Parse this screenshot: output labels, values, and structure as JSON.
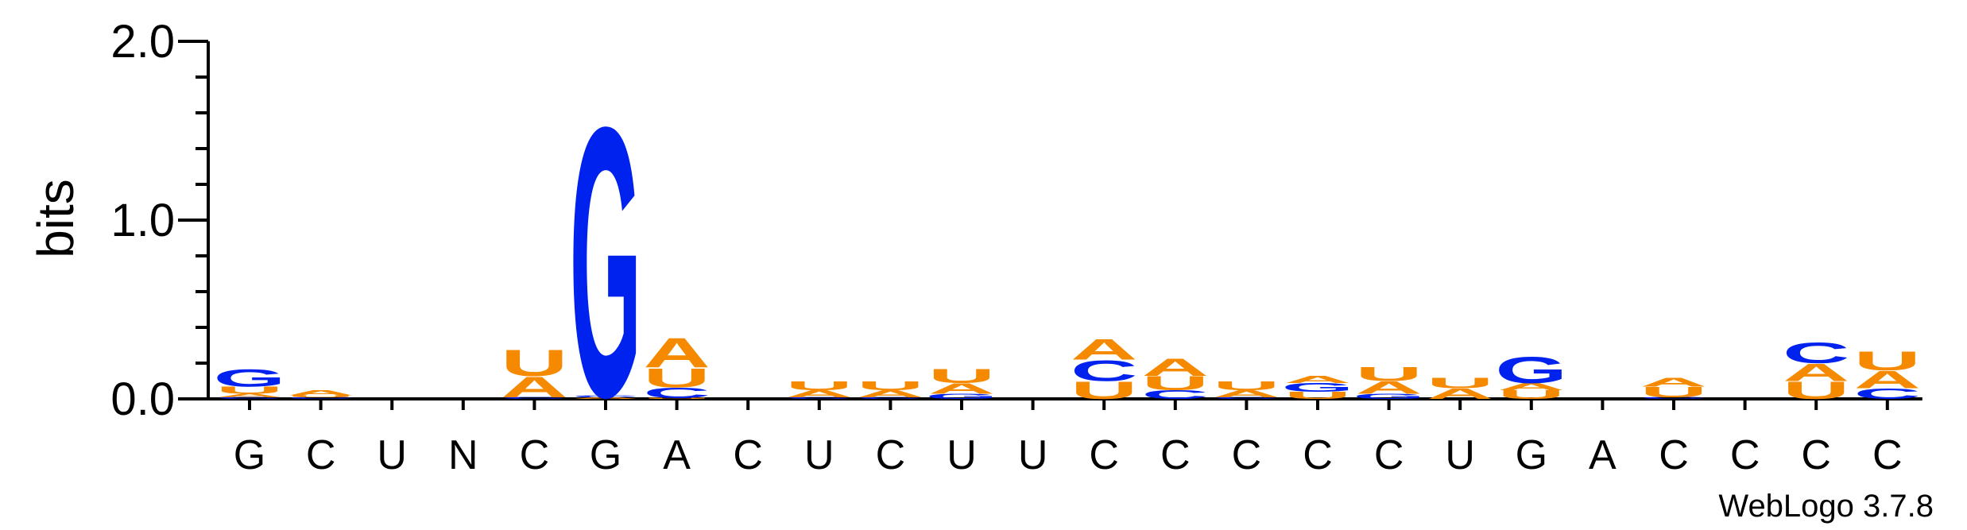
{
  "chart_data": {
    "type": "sequence-logo",
    "ylabel": "bits",
    "ylim": [
      0,
      2.0
    ],
    "yticks": [
      "0.0",
      "1.0",
      "2.0"
    ],
    "positions": [
      "G",
      "C",
      "U",
      "N",
      "C",
      "G",
      "A",
      "C",
      "U",
      "C",
      "U",
      "U",
      "C",
      "C",
      "C",
      "C",
      "C",
      "U",
      "G",
      "A",
      "C",
      "C",
      "C",
      "C"
    ],
    "colors": {
      "A": "#f58a00",
      "U": "#f58a00",
      "C": "#0022ee",
      "G": "#0022ee"
    },
    "stacks": [
      [
        {
          "l": "C",
          "h": 0.01
        },
        {
          "l": "A",
          "h": 0.02
        },
        {
          "l": "U",
          "h": 0.04
        },
        {
          "l": "G",
          "h": 0.1
        }
      ],
      [
        {
          "l": "C",
          "h": 0.01
        },
        {
          "l": "U",
          "h": 0.01
        },
        {
          "l": "A",
          "h": 0.03
        }
      ],
      [],
      [],
      [
        {
          "l": "C",
          "h": 0.01
        },
        {
          "l": "A",
          "h": 0.12
        },
        {
          "l": "U",
          "h": 0.15
        }
      ],
      [
        {
          "l": "A",
          "h": 0.01
        },
        {
          "l": "C",
          "h": 0.01
        },
        {
          "l": "G",
          "h": 1.55
        }
      ],
      [
        {
          "l": "U",
          "h": 0.005
        },
        {
          "l": "C",
          "h": 0.06
        },
        {
          "l": "U",
          "h": 0.11
        },
        {
          "l": "A",
          "h": 0.17
        }
      ],
      [],
      [
        {
          "l": "C",
          "h": 0.01
        },
        {
          "l": "A",
          "h": 0.04
        },
        {
          "l": "U",
          "h": 0.05
        }
      ],
      [
        {
          "l": "C",
          "h": 0.01
        },
        {
          "l": "A",
          "h": 0.04
        },
        {
          "l": "U",
          "h": 0.05
        }
      ],
      [
        {
          "l": "G",
          "h": 0.03
        },
        {
          "l": "A",
          "h": 0.06
        },
        {
          "l": "U",
          "h": 0.08
        }
      ],
      [],
      [
        {
          "l": "U",
          "h": 0.1
        },
        {
          "l": "C",
          "h": 0.12
        },
        {
          "l": "A",
          "h": 0.12
        }
      ],
      [
        {
          "l": "C",
          "h": 0.05
        },
        {
          "l": "U",
          "h": 0.08
        },
        {
          "l": "A",
          "h": 0.1
        }
      ],
      [
        {
          "l": "C",
          "h": 0.01
        },
        {
          "l": "A",
          "h": 0.04
        },
        {
          "l": "U",
          "h": 0.05
        }
      ],
      [
        {
          "l": "U",
          "h": 0.04
        },
        {
          "l": "G",
          "h": 0.05
        },
        {
          "l": "A",
          "h": 0.04
        }
      ],
      [
        {
          "l": "G",
          "h": 0.03
        },
        {
          "l": "A",
          "h": 0.07
        },
        {
          "l": "U",
          "h": 0.08
        }
      ],
      [
        {
          "l": "A",
          "h": 0.06
        },
        {
          "l": "U",
          "h": 0.06
        }
      ],
      [
        {
          "l": "U",
          "h": 0.05
        },
        {
          "l": "A",
          "h": 0.04
        },
        {
          "l": "G",
          "h": 0.15
        }
      ],
      [],
      [
        {
          "l": "C",
          "h": 0.01
        },
        {
          "l": "U",
          "h": 0.06
        },
        {
          "l": "A",
          "h": 0.05
        }
      ],
      [],
      [
        {
          "l": "U",
          "h": 0.1
        },
        {
          "l": "A",
          "h": 0.1
        },
        {
          "l": "C",
          "h": 0.12
        }
      ],
      [
        {
          "l": "C",
          "h": 0.06
        },
        {
          "l": "A",
          "h": 0.1
        },
        {
          "l": "U",
          "h": 0.11
        }
      ]
    ]
  },
  "credit": "WebLogo 3.7.8"
}
